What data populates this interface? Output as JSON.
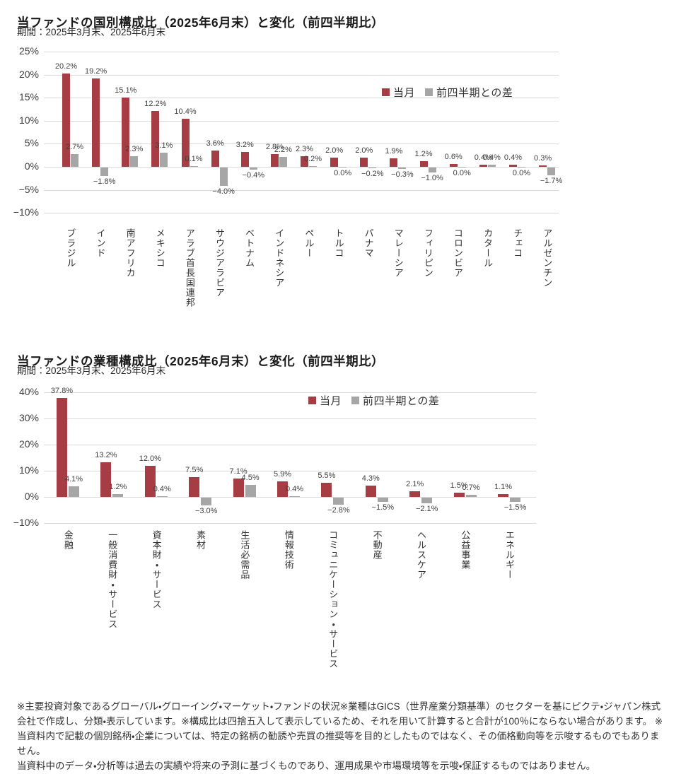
{
  "colors": {
    "current_month": "#A63D45",
    "quarter_diff": "#A6A6A6",
    "gridline": "#D9D9D9"
  },
  "chart_data": [
    {
      "type": "bar",
      "title": "当ファンドの国別構成比（2025年6月末）と変化（前四半期比）",
      "subtitle": "期間：2025年3月末、2025年6月末",
      "categories": [
        "ブラジル",
        "インド",
        "南アフリカ",
        "メキシコ",
        "アラブ首長国連邦",
        "サウジアラビア",
        "ベトナム",
        "インドネシア",
        "ペルー",
        "トルコ",
        "パナマ",
        "マレーシア",
        "フィリピン",
        "コロンビア",
        "カタール",
        "チェコ",
        "アルゼンチン"
      ],
      "series": [
        {
          "name": "当月",
          "color": "#A63D45",
          "values": [
            20.2,
            19.2,
            15.1,
            12.2,
            10.4,
            3.6,
            3.2,
            2.8,
            2.3,
            2.0,
            2.0,
            1.9,
            1.2,
            0.6,
            0.4,
            0.4,
            0.3
          ]
        },
        {
          "name": "前四半期との差",
          "color": "#A6A6A6",
          "values": [
            2.7,
            -1.8,
            2.3,
            3.1,
            0.1,
            -4.0,
            -0.4,
            2.2,
            0.2,
            0.0,
            -0.2,
            -0.3,
            -1.0,
            0.0,
            0.4,
            0.0,
            -1.7
          ]
        }
      ],
      "ylim": [
        -10,
        25
      ],
      "ytick_step": 5,
      "grid": true,
      "legend_position": "inside-top-right"
    },
    {
      "type": "bar",
      "title": "当ファンドの業種構成比（2025年6月末）と変化（前四半期比）",
      "subtitle": "期間：2025年3月末、2025年6月末",
      "categories": [
        "金融",
        "一般消費財・サービス",
        "資本財・サービス",
        "素材",
        "生活必需品",
        "情報技術",
        "コミュニケーション・サービス",
        "不動産",
        "ヘルスケア",
        "公益事業",
        "エネルギー"
      ],
      "series": [
        {
          "name": "当月",
          "color": "#A63D45",
          "values": [
            37.8,
            13.2,
            12.0,
            7.5,
            7.1,
            5.9,
            5.5,
            4.3,
            2.1,
            1.5,
            1.1
          ]
        },
        {
          "name": "前四半期との差",
          "color": "#A6A6A6",
          "values": [
            4.1,
            1.2,
            0.4,
            -3.0,
            4.5,
            0.4,
            -2.8,
            -1.5,
            -2.1,
            0.7,
            -1.5
          ]
        }
      ],
      "ylim": [
        -10,
        40
      ],
      "ytick_step": 10,
      "grid": true,
      "legend_position": "inside-top-right"
    }
  ],
  "footer": {
    "note1": "※主要投資対象であるグローバル・グローイング・マーケット・ファンドの状況※業種はGICS（世界産業分類基準）のセクターを基にピクテ・ジャパン株式会社で作成し、分類・表示しています。※構成比は四捨五入して表示しているため、それを用いて計算すると合計が100％にならない場合があります。 ※当資料内で記載の個別銘柄・企業については、特定の銘柄の勧誘や売買の推奨等を目的としたものではなく、その価格動向等を示唆するものでもありません。",
    "note2": "当資料中のデータ・分析等は過去の実績や将来の予測に基づくものであり、運用成果や市場環境等を示唆・保証するものではありません。"
  }
}
